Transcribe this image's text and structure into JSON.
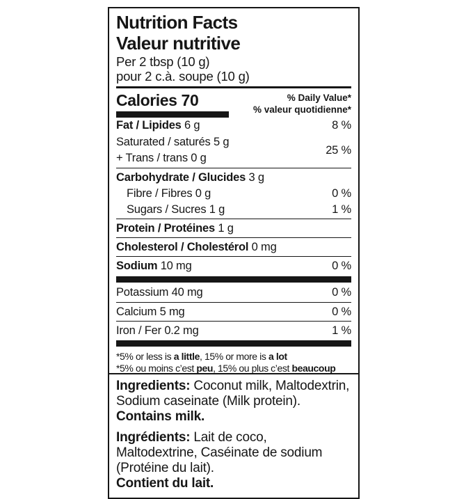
{
  "colors": {
    "ink": "#161616",
    "paper": "#ffffff"
  },
  "label": {
    "title_en": "Nutrition Facts",
    "title_fr": "Valeur nutritive",
    "serving_en": "Per 2 tbsp (10 g)",
    "serving_fr": "pour 2 c.à. soupe (10 g)",
    "calories": "Calories 70",
    "dv_header_en": "% Daily Value*",
    "dv_header_fr": "% valeur quotidienne*",
    "nutrients": {
      "fat": {
        "bold": "Fat / Lipides",
        "rest": " 6 g",
        "dv": "8 %"
      },
      "saturated": {
        "text": "Saturated / saturés 5 g"
      },
      "trans": {
        "text": "+ Trans / trans 0 g"
      },
      "sat_trans_dv": "25 %",
      "carbohydrate": {
        "bold": "Carbohydrate / Glucides",
        "rest": " 3 g",
        "dv": ""
      },
      "fibre": {
        "text": "Fibre / Fibres 0 g",
        "dv": "0 %"
      },
      "sugars": {
        "text": "Sugars / Sucres 1 g",
        "dv": "1 %"
      },
      "protein": {
        "bold": "Protein / Protéines",
        "rest": " 1 g",
        "dv": ""
      },
      "cholesterol": {
        "bold": "Cholesterol / Cholestérol",
        "rest": " 0 mg",
        "dv": ""
      },
      "sodium": {
        "bold": "Sodium",
        "rest": " 10 mg",
        "dv": "0 %"
      },
      "potassium": {
        "text": "Potassium 40 mg",
        "dv": "0 %"
      },
      "calcium": {
        "text": "Calcium 5 mg",
        "dv": "0 %"
      },
      "iron": {
        "text": "Iron / Fer 0.2 mg",
        "dv": "1 %"
      }
    },
    "footnote_en": {
      "pre": "*5% or less is ",
      "bold1": "a little",
      "mid": ", 15% or more is ",
      "bold2": "a lot"
    },
    "footnote_fr": {
      "pre": "*5% ou moins c’est ",
      "bold1": "peu",
      "mid": ", 15% ou plus c’est ",
      "bold2": "beaucoup"
    }
  },
  "ingredients": {
    "en": {
      "label": "Ingredients:",
      "text": " Coconut milk, Maltodextrin, Sodium caseinate (Milk protein).",
      "contains": "Contains milk."
    },
    "fr": {
      "label": "Ingrédients:",
      "text": " Lait de coco, Maltodextrine, Caséinate de sodium (Protéine du lait).",
      "contains": "Contient du lait."
    }
  }
}
